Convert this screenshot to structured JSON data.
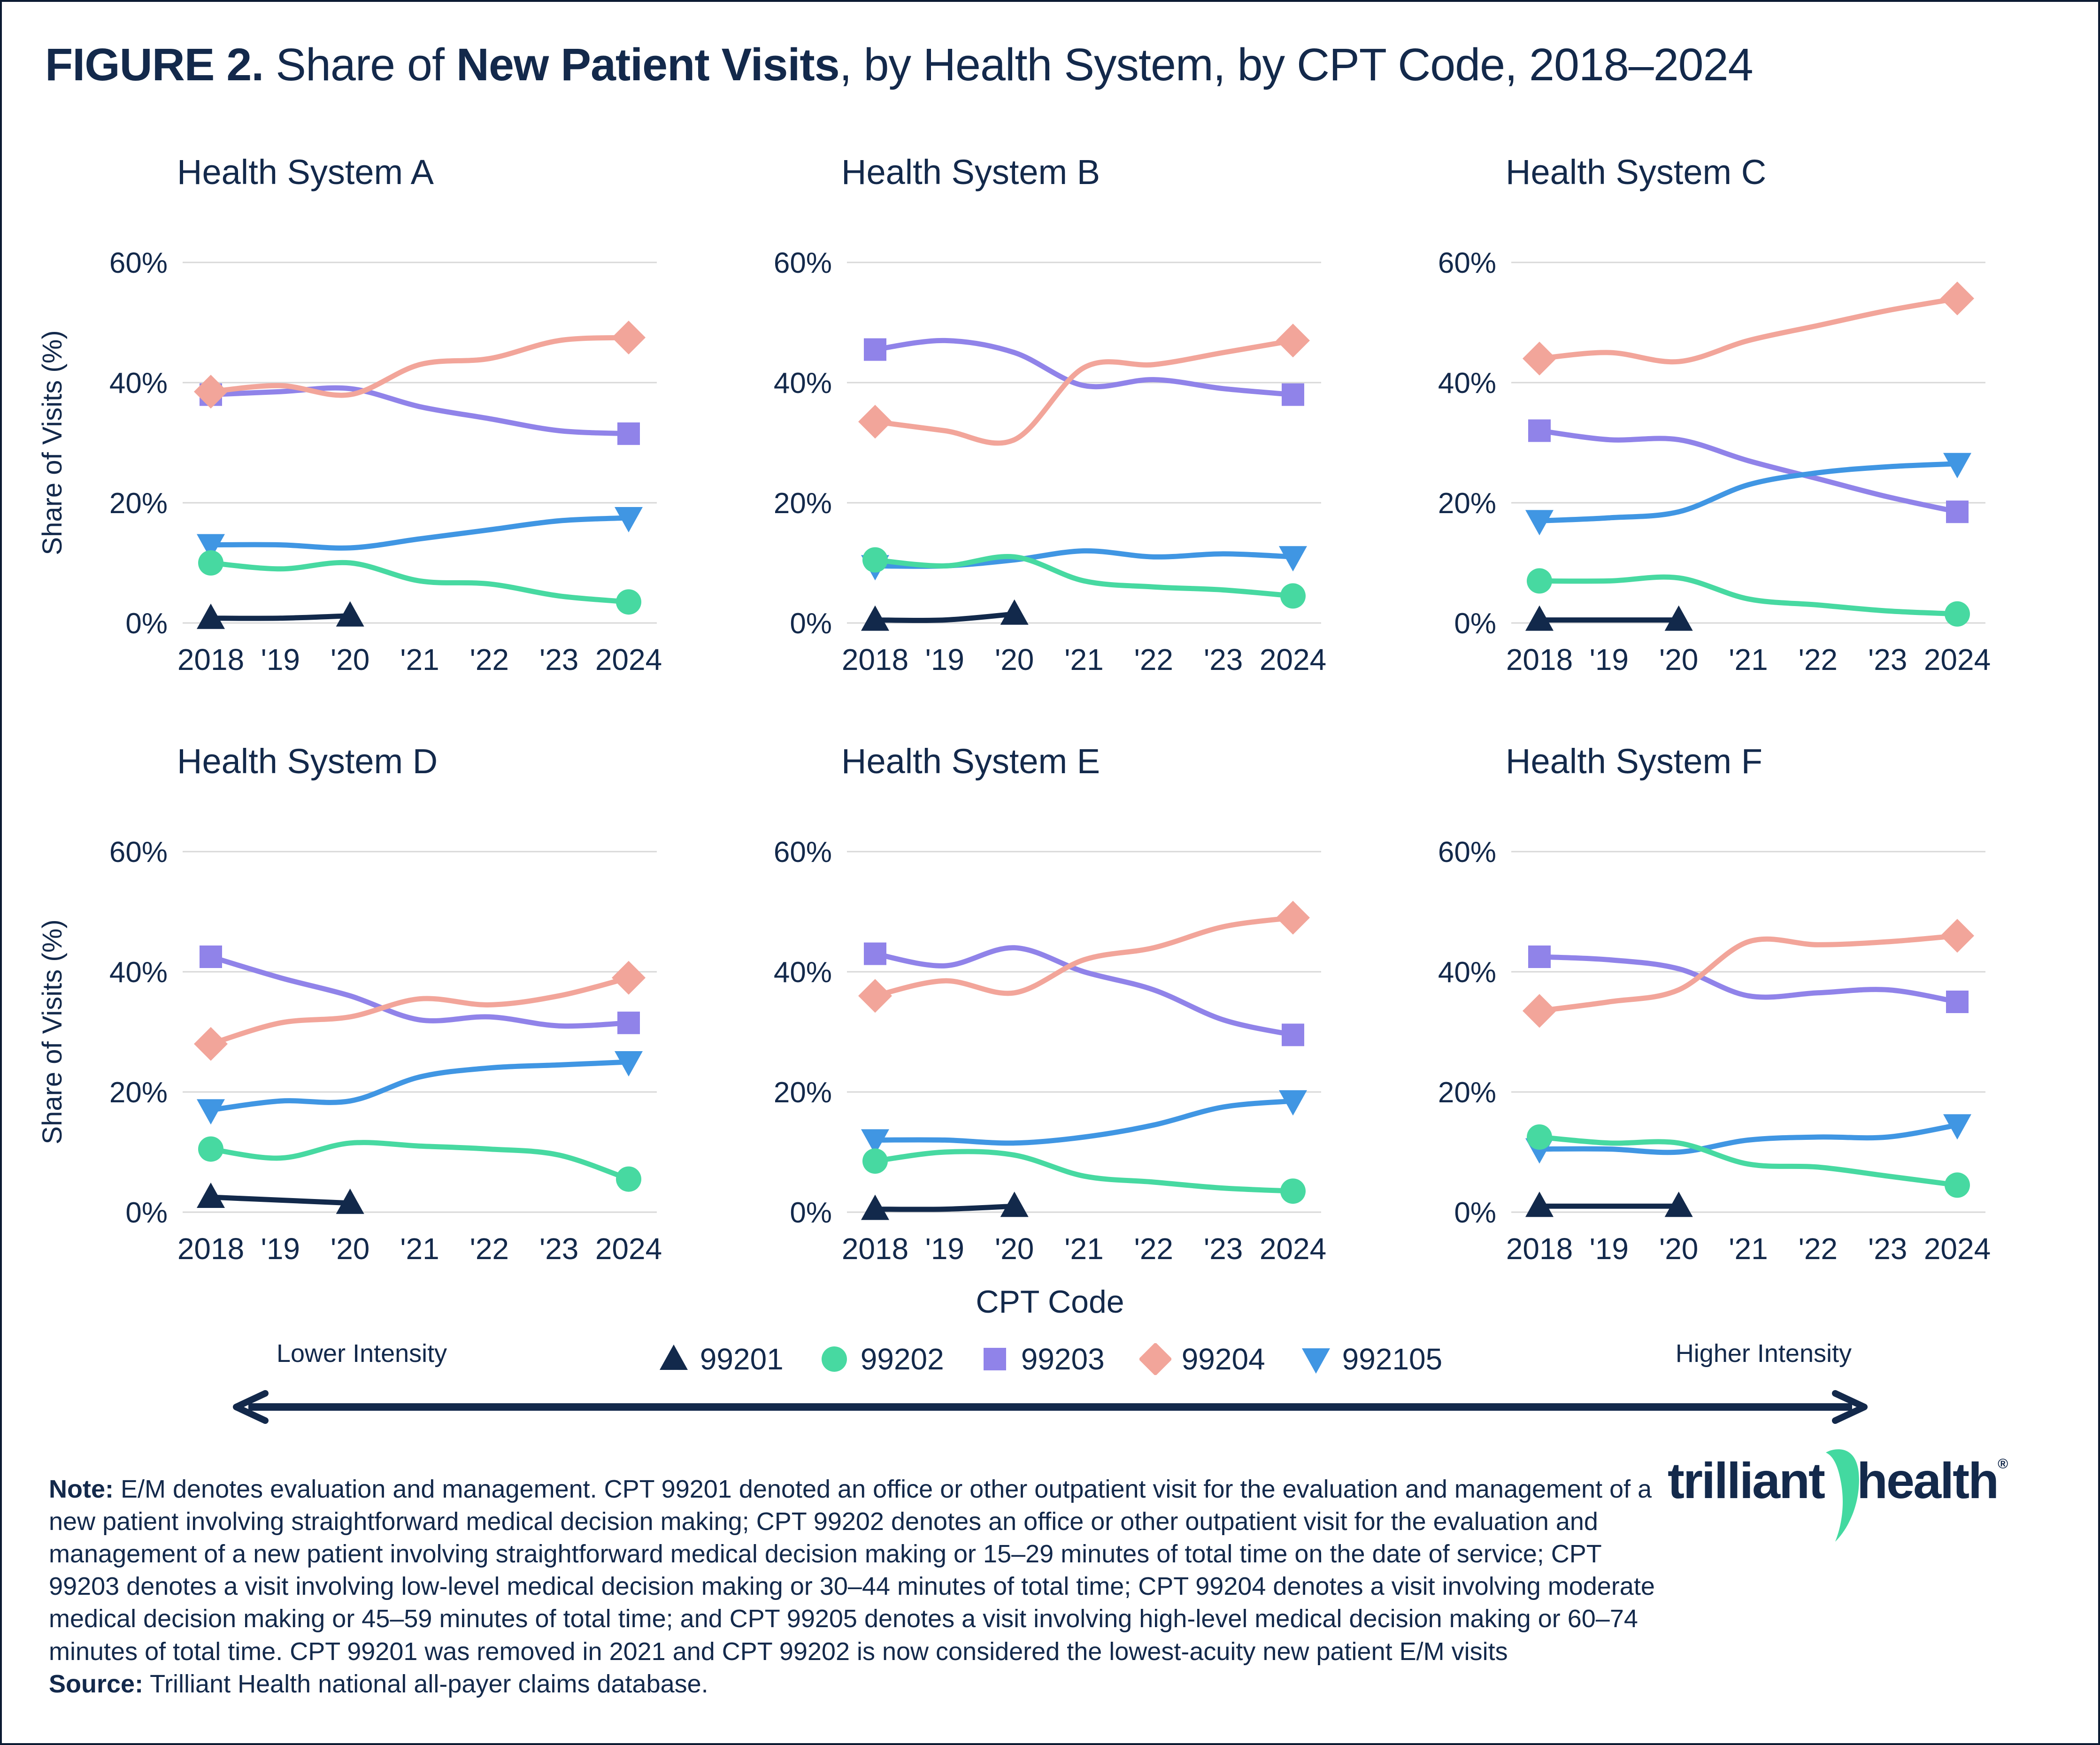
{
  "colors": {
    "text_navy": "#13294B",
    "gridline": "#D8D8D8",
    "series_99201": "#12294B",
    "series_99202": "#47D9A1",
    "series_99203": "#9083E9",
    "series_99204": "#F2A59A",
    "series_992105": "#4096E3",
    "logo_green": "#43D9A0"
  },
  "header": {
    "title_parts": [
      "FIGURE 2.",
      " Share of ",
      "New Patient Visits",
      ", by Health System, by CPT Code, 2018–2024"
    ]
  },
  "axis": {
    "ytick_labels": [
      "60%",
      "40%",
      "20%",
      "0%"
    ],
    "ytick_values": [
      60,
      40,
      20,
      0
    ],
    "ylim": [
      0,
      60
    ],
    "grid": true
  },
  "series_styles": {
    "99201": {
      "color": "#12294B",
      "marker": "triangle-up"
    },
    "99202": {
      "color": "#47D9A1",
      "marker": "circle"
    },
    "99203": {
      "color": "#9083E9",
      "marker": "square"
    },
    "99204": {
      "color": "#F2A59A",
      "marker": "diamond"
    },
    "992105": {
      "color": "#4096E3",
      "marker": "triangle-down"
    }
  },
  "draw_order": [
    "99201",
    "99203",
    "99204",
    "992105",
    "99202"
  ],
  "chart_data": [
    {
      "type": "line",
      "title": "Health System A",
      "ylabel": "Share of Visits (%)",
      "ylim": [
        0,
        60
      ],
      "x": [
        "2018",
        "'19",
        "'20",
        "'21",
        "'22",
        "'23",
        "2024"
      ],
      "series": [
        {
          "name": "99201",
          "values": [
            0.8,
            0.8,
            1.2,
            null,
            null,
            null,
            null
          ]
        },
        {
          "name": "99202",
          "values": [
            10,
            9,
            10,
            7,
            6.5,
            4.5,
            3.5
          ]
        },
        {
          "name": "99203",
          "values": [
            38,
            38.5,
            39,
            36,
            34,
            32,
            31.5
          ]
        },
        {
          "name": "99204",
          "values": [
            38.5,
            39.5,
            38,
            43,
            44,
            47,
            47.5
          ]
        },
        {
          "name": "992105",
          "values": [
            13,
            13,
            12.5,
            14,
            15.5,
            17,
            17.5
          ]
        }
      ]
    },
    {
      "type": "line",
      "title": "Health System B",
      "ylabel": "",
      "ylim": [
        0,
        60
      ],
      "x": [
        "2018",
        "'19",
        "'20",
        "'21",
        "'22",
        "'23",
        "2024"
      ],
      "series": [
        {
          "name": "99201",
          "values": [
            0.5,
            0.5,
            1.5,
            null,
            null,
            null,
            null
          ]
        },
        {
          "name": "99202",
          "values": [
            10.5,
            9.5,
            11,
            7,
            6,
            5.5,
            4.5
          ]
        },
        {
          "name": "99203",
          "values": [
            45.5,
            47,
            45,
            39.5,
            40.5,
            39,
            38
          ]
        },
        {
          "name": "99204",
          "values": [
            33.5,
            32,
            30.5,
            42.5,
            43,
            45,
            47
          ]
        },
        {
          "name": "992105",
          "values": [
            9.5,
            9.5,
            10.5,
            12,
            11,
            11.5,
            11
          ]
        }
      ]
    },
    {
      "type": "line",
      "title": "Health System C",
      "ylabel": "",
      "ylim": [
        0,
        60
      ],
      "x": [
        "2018",
        "'19",
        "'20",
        "'21",
        "'22",
        "'23",
        "2024"
      ],
      "series": [
        {
          "name": "99201",
          "values": [
            0.5,
            0.5,
            0.5,
            null,
            null,
            null,
            null
          ]
        },
        {
          "name": "99202",
          "values": [
            7,
            7,
            7.5,
            4,
            3,
            2,
            1.5
          ]
        },
        {
          "name": "99203",
          "values": [
            32,
            30.5,
            30.5,
            27,
            24,
            21,
            18.5
          ]
        },
        {
          "name": "99204",
          "values": [
            44,
            45,
            43.5,
            47,
            49.5,
            52,
            54
          ]
        },
        {
          "name": "992105",
          "values": [
            17,
            17.5,
            18.5,
            23,
            25,
            26,
            26.5
          ]
        }
      ]
    },
    {
      "type": "line",
      "title": "Health System D",
      "ylabel": "Share of Visits (%)",
      "ylim": [
        0,
        60
      ],
      "x": [
        "2018",
        "'19",
        "'20",
        "'21",
        "'22",
        "'23",
        "2024"
      ],
      "series": [
        {
          "name": "99201",
          "values": [
            2.5,
            2,
            1.5,
            null,
            null,
            null,
            null
          ]
        },
        {
          "name": "99202",
          "values": [
            10.5,
            9,
            11.5,
            11,
            10.5,
            9.5,
            5.5
          ]
        },
        {
          "name": "99203",
          "values": [
            42.5,
            39,
            36,
            32,
            32.5,
            31,
            31.5
          ]
        },
        {
          "name": "99204",
          "values": [
            28,
            31.5,
            32.5,
            35.5,
            34.5,
            36,
            39
          ]
        },
        {
          "name": "992105",
          "values": [
            17,
            18.5,
            18.5,
            22.5,
            24,
            24.5,
            25
          ]
        }
      ]
    },
    {
      "type": "line",
      "title": "Health System E",
      "ylabel": "",
      "ylim": [
        0,
        60
      ],
      "x": [
        "2018",
        "'19",
        "'20",
        "'21",
        "'22",
        "'23",
        "2024"
      ],
      "series": [
        {
          "name": "99201",
          "values": [
            0.5,
            0.5,
            1,
            null,
            null,
            null,
            null
          ]
        },
        {
          "name": "99202",
          "values": [
            8.5,
            10,
            9.5,
            6,
            5,
            4,
            3.5
          ]
        },
        {
          "name": "99203",
          "values": [
            43,
            41,
            44,
            40,
            37,
            32,
            29.5
          ]
        },
        {
          "name": "99204",
          "values": [
            36,
            38.5,
            36.5,
            42,
            44,
            47.5,
            49
          ]
        },
        {
          "name": "992105",
          "values": [
            12,
            12,
            11.5,
            12.5,
            14.5,
            17.5,
            18.5
          ]
        }
      ]
    },
    {
      "type": "line",
      "title": "Health System F",
      "ylabel": "",
      "ylim": [
        0,
        60
      ],
      "x": [
        "2018",
        "'19",
        "'20",
        "'21",
        "'22",
        "'23",
        "2024"
      ],
      "series": [
        {
          "name": "99201",
          "values": [
            1,
            1,
            1,
            null,
            null,
            null,
            null
          ]
        },
        {
          "name": "99202",
          "values": [
            12.5,
            11.5,
            11.5,
            8,
            7.5,
            6,
            4.5
          ]
        },
        {
          "name": "99203",
          "values": [
            42.5,
            42,
            40.5,
            36,
            36.5,
            37,
            35
          ]
        },
        {
          "name": "99204",
          "values": [
            33.5,
            35,
            37,
            45,
            44.5,
            45,
            46
          ]
        },
        {
          "name": "992105",
          "values": [
            10.5,
            10.5,
            10,
            12,
            12.5,
            12.5,
            14.5
          ]
        }
      ]
    }
  ],
  "legend": {
    "title": "CPT Code",
    "items": [
      {
        "label": "99201",
        "marker": "triangle-up",
        "color": "#12294B"
      },
      {
        "label": "99202",
        "marker": "circle",
        "color": "#47D9A1"
      },
      {
        "label": "99203",
        "marker": "square",
        "color": "#9083E9"
      },
      {
        "label": "99204",
        "marker": "diamond",
        "color": "#F2A59A"
      },
      {
        "label": "992105",
        "marker": "triangle-down",
        "color": "#4096E3"
      }
    ],
    "lower_intensity": "Lower Intensity",
    "higher_intensity": "Higher Intensity"
  },
  "note": {
    "note_label": "Note:",
    "note_text": " E/M denotes evaluation and management. CPT 99201 denoted an office or other outpatient visit for the evaluation and management of a new patient involving straightforward medical decision making; CPT 99202 denotes an office or other outpatient visit for the evaluation and management of a new patient involving straightforward medical decision making or 15–29 minutes of total time on the date of service; CPT 99203 denotes a visit involving low-level medical decision making or 30–44 minutes of total time; CPT 99204 denotes a visit involving moderate medical decision making or 45–59 minutes of total time; and CPT 99205 denotes a visit involving high-level medical decision making or 60–74 minutes of total time. CPT 99201 was removed in 2021 and CPT 99202 is now considered the lowest-acuity new patient E/M visits",
    "source_label": "Source:",
    "source_text": " Trilliant Health national all-payer claims database."
  },
  "logo": {
    "text_left": "trilliant",
    "text_right": "health",
    "registered": "®"
  }
}
